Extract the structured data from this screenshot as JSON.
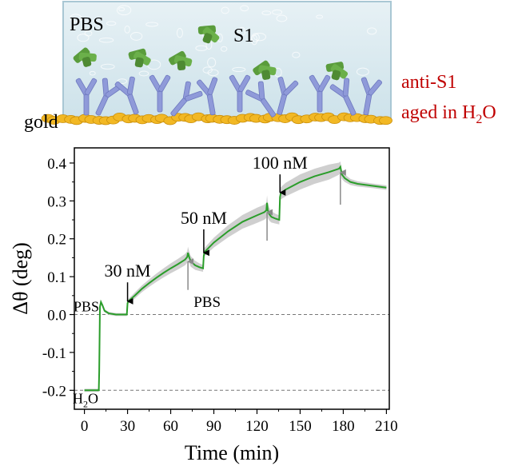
{
  "illustration": {
    "buffer_label": "PBS",
    "analyte_label": "S1",
    "surface_label": "gold",
    "antibody_label_line1": "anti-S1",
    "antibody_label_line2_prefix": "aged in H",
    "antibody_label_line2_sub": "2",
    "antibody_label_line2_suffix": "O",
    "colors": {
      "solution": "#d6e8ef",
      "gold": "#f2b824",
      "antibody": "#8f9ad9",
      "s1_protein": "#5a9c3c",
      "red_text": "#c00000"
    }
  },
  "chart_data": {
    "type": "line",
    "xlabel": "Time (min)",
    "ylabel": "Δθ (deg)",
    "xlim": [
      -7,
      212
    ],
    "ylim": [
      -0.25,
      0.44
    ],
    "xticks": [
      0,
      30,
      60,
      90,
      120,
      150,
      180,
      210
    ],
    "yticks": [
      -0.2,
      -0.1,
      0.0,
      0.1,
      0.2,
      0.3,
      0.4
    ],
    "ytick_labels": [
      "-0.2",
      "-0.1",
      "0.0",
      "0.1",
      "0.2",
      "0.3",
      "0.4"
    ],
    "line_color": "#2a9d2a",
    "band_color": "#cfcfcf",
    "reference_lines": [
      {
        "y": 0.0,
        "label": "PBS"
      },
      {
        "y": -0.2,
        "label_prefix": "H",
        "label_sub": "2",
        "label_suffix": "O"
      }
    ],
    "series": [
      {
        "x": [
          0,
          10,
          10.3,
          10.8,
          11.5,
          12.5,
          14,
          17,
          22,
          26,
          29.5,
          30,
          30.5,
          35,
          40,
          45,
          50,
          55,
          60,
          65,
          70,
          71.5,
          72,
          73,
          74,
          77,
          80,
          82.5,
          83,
          83.5,
          90,
          100,
          110,
          120,
          125,
          126.5,
          127,
          127.5,
          128.5,
          130,
          133,
          135.5,
          136,
          136.5,
          140,
          150,
          160,
          170,
          177,
          178,
          179,
          181,
          185,
          190,
          200,
          210
        ],
        "y": [
          -0.2,
          -0.2,
          -0.15,
          0.02,
          0.033,
          0.025,
          0.01,
          0.003,
          0.0,
          0.0,
          0.0,
          0.03,
          0.035,
          0.05,
          0.068,
          0.083,
          0.097,
          0.11,
          0.122,
          0.133,
          0.145,
          0.152,
          0.163,
          0.15,
          0.14,
          0.13,
          0.125,
          0.122,
          0.155,
          0.165,
          0.19,
          0.22,
          0.245,
          0.262,
          0.27,
          0.275,
          0.295,
          0.275,
          0.265,
          0.258,
          0.253,
          0.25,
          0.31,
          0.32,
          0.33,
          0.35,
          0.365,
          0.376,
          0.385,
          0.39,
          0.37,
          0.36,
          0.35,
          0.345,
          0.34,
          0.335
        ],
        "band_halfwidth": [
          0.004,
          0.004,
          0.006,
          0.006,
          0.005,
          0.004,
          0.004,
          0.004,
          0.004,
          0.004,
          0.004,
          0.005,
          0.006,
          0.008,
          0.009,
          0.01,
          0.011,
          0.012,
          0.013,
          0.014,
          0.015,
          0.015,
          0.016,
          0.015,
          0.014,
          0.012,
          0.01,
          0.009,
          0.01,
          0.011,
          0.013,
          0.016,
          0.018,
          0.02,
          0.02,
          0.02,
          0.02,
          0.019,
          0.017,
          0.015,
          0.013,
          0.012,
          0.014,
          0.016,
          0.018,
          0.02,
          0.02,
          0.02,
          0.016,
          0.014,
          0.012,
          0.01,
          0.008,
          0.007,
          0.006,
          0.006
        ]
      }
    ],
    "annotations": [
      {
        "text": "30 nM",
        "x": 30,
        "arrow": "down",
        "arrow_color": "#000000",
        "arrow_top": 0.085,
        "arrow_bottom": 0.035,
        "text_y": 0.1
      },
      {
        "text": "50 nM",
        "x": 83,
        "arrow": "down",
        "arrow_color": "#000000",
        "arrow_top": 0.225,
        "arrow_bottom": 0.163,
        "text_y": 0.24
      },
      {
        "text": "100 nM",
        "x": 136,
        "arrow": "down",
        "arrow_color": "#000000",
        "arrow_top": 0.37,
        "arrow_bottom": 0.322,
        "text_y": 0.385
      },
      {
        "text": "PBS",
        "x": 72,
        "arrow": "up",
        "arrow_color": "#8a8a8a",
        "arrow_top": 0.14,
        "arrow_bottom": 0.065,
        "text_y": 0.02
      },
      {
        "text": "",
        "x": 127,
        "arrow": "up",
        "arrow_color": "#8a8a8a",
        "arrow_top": 0.27,
        "arrow_bottom": 0.195
      },
      {
        "text": "",
        "x": 178,
        "arrow": "up",
        "arrow_color": "#8a8a8a",
        "arrow_top": 0.375,
        "arrow_bottom": 0.29
      }
    ]
  }
}
